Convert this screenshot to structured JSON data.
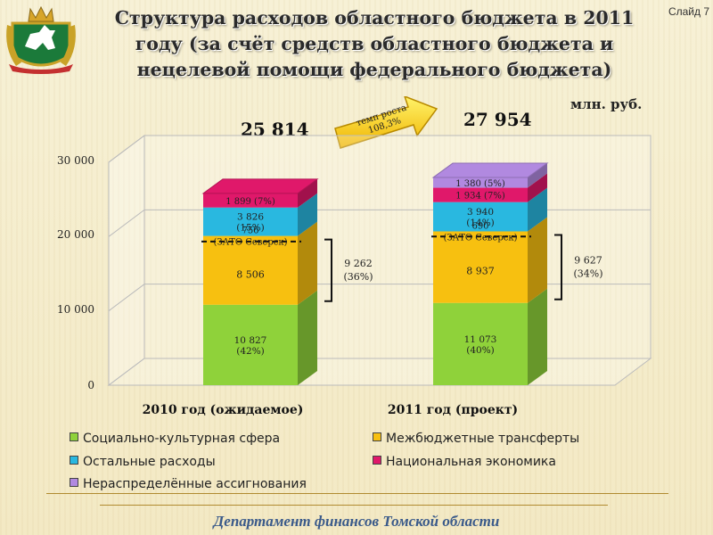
{
  "header": {
    "title_line1": "Структура расходов областного бюджета в 2011",
    "title_line2": "году (за счёт средств областного бюджета и",
    "title_line3": "нецелевой помощи федерального бюджета)",
    "slide_label": "Слайд 7"
  },
  "growth_arrow": {
    "line1": "темп роста",
    "line2": "108,3%"
  },
  "footer": {
    "text": "Департамент финансов Томской области"
  },
  "colors": {
    "social": "#8fd23a",
    "transfers": "#f7c010",
    "other": "#29b8e0",
    "economy": "#e0186a",
    "unallocated": "#b189e0",
    "accent_title": "#2a2a2a"
  },
  "chart_data": {
    "type": "bar",
    "stacked": true,
    "unit_label": "млн. руб.",
    "categories": [
      "2010 год (ожидаемое)",
      "2011 год (проект)"
    ],
    "totals": [
      "25 814",
      "27 954"
    ],
    "ylim": [
      0,
      30000
    ],
    "yticks": [
      "0",
      "10 000",
      "20 000",
      "30 000"
    ],
    "series": [
      {
        "name": "Социально-культурная сфера",
        "key": "social",
        "values": [
          10827,
          11073
        ],
        "labels": [
          [
            "10 827",
            "(42%)"
          ],
          [
            "11 073",
            "(40%)"
          ]
        ]
      },
      {
        "name": "Межбюджетные трансферты",
        "key": "transfers",
        "values": [
          9262,
          9627
        ],
        "labels": [
          [
            "8 506"
          ],
          [
            "8 937"
          ]
        ],
        "sub_labels": [
          [
            "756",
            "(ЗАТО Северск)"
          ],
          [
            "690",
            "(ЗАТО Северск)"
          ]
        ],
        "split_values": [
          [
            8506,
            756
          ],
          [
            8937,
            690
          ]
        ],
        "bracket_labels": [
          [
            "9 262",
            "(36%)"
          ],
          [
            "9 627",
            "(34%)"
          ]
        ]
      },
      {
        "name": "Остальные расходы",
        "key": "other",
        "values": [
          3826,
          3940
        ],
        "labels": [
          [
            "3 826",
            "(15%)"
          ],
          [
            "3 940",
            "(14%)"
          ]
        ]
      },
      {
        "name": "Национальная экономика",
        "key": "economy",
        "values": [
          1899,
          1934
        ],
        "labels": [
          [
            "1 899",
            "(7%)"
          ],
          [
            "1 934",
            "(7%)"
          ]
        ]
      },
      {
        "name": "Нераспределённые ассигнования",
        "key": "unallocated",
        "values": [
          0,
          1380
        ],
        "labels": [
          [],
          [
            "1 380",
            "(5%)"
          ]
        ]
      }
    ],
    "legend_placement": "bottom",
    "grid": true
  }
}
